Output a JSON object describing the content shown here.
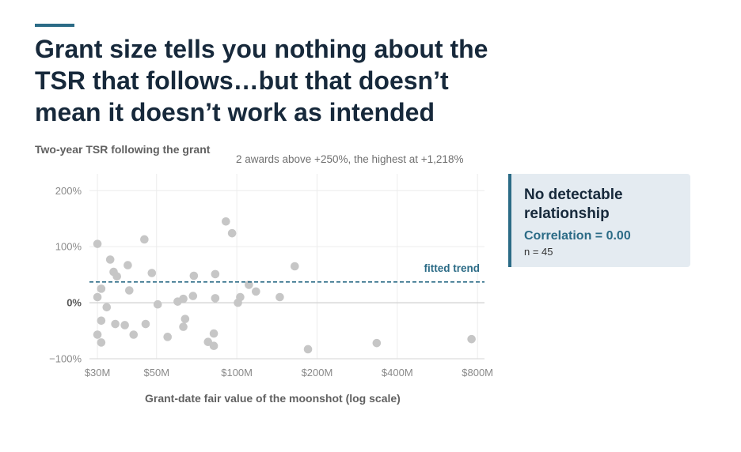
{
  "accent_color": "#2b6b86",
  "title": "Grant size tells you nothing about the TSR that follows…but that doesn’t mean it doesn’t work as intended",
  "chart_data": {
    "type": "scatter",
    "ylabel": "Two-year TSR following the grant",
    "xlabel": "Grant-date fair value of the moonshot (log scale)",
    "annotation": "2 awards above +250%, the highest at +1,218%",
    "x_scale": "log",
    "x_unit": "$M",
    "y_unit": "%",
    "xlim": [
      28,
      850
    ],
    "ylim": [
      -100,
      230
    ],
    "x_ticks": [
      30,
      50,
      100,
      200,
      400,
      800
    ],
    "x_tick_labels": [
      "$30M",
      "$50M",
      "$100M",
      "$200M",
      "$400M",
      "$800M"
    ],
    "y_ticks": [
      -100,
      0,
      100,
      200
    ],
    "y_tick_labels": [
      "−100%",
      "0%",
      "100%",
      "200%"
    ],
    "grid": true,
    "point_color": "#c6c6c6",
    "trend_color": "#2b6b86",
    "trend": {
      "label": "fitted trend",
      "y": 37
    },
    "points": [
      {
        "x": 30,
        "y": 105
      },
      {
        "x": 30,
        "y": 10
      },
      {
        "x": 30,
        "y": -57
      },
      {
        "x": 31,
        "y": 25
      },
      {
        "x": 31,
        "y": -32
      },
      {
        "x": 31,
        "y": -71
      },
      {
        "x": 32.5,
        "y": -8
      },
      {
        "x": 33.5,
        "y": 77
      },
      {
        "x": 34.5,
        "y": 55
      },
      {
        "x": 35,
        "y": -38
      },
      {
        "x": 35.5,
        "y": 47
      },
      {
        "x": 38,
        "y": -40
      },
      {
        "x": 39,
        "y": 67
      },
      {
        "x": 39.5,
        "y": 22
      },
      {
        "x": 41,
        "y": -57
      },
      {
        "x": 45,
        "y": 113
      },
      {
        "x": 45.5,
        "y": -38
      },
      {
        "x": 48,
        "y": 53
      },
      {
        "x": 50.5,
        "y": -3
      },
      {
        "x": 55,
        "y": -61
      },
      {
        "x": 60,
        "y": 2
      },
      {
        "x": 63,
        "y": 7
      },
      {
        "x": 63,
        "y": -43
      },
      {
        "x": 64,
        "y": -29
      },
      {
        "x": 68.5,
        "y": 12
      },
      {
        "x": 69,
        "y": 48
      },
      {
        "x": 78,
        "y": -70
      },
      {
        "x": 82,
        "y": -55
      },
      {
        "x": 82,
        "y": -77
      },
      {
        "x": 83,
        "y": 51
      },
      {
        "x": 83,
        "y": 8
      },
      {
        "x": 91,
        "y": 145
      },
      {
        "x": 96,
        "y": 124
      },
      {
        "x": 101,
        "y": 0
      },
      {
        "x": 103,
        "y": 10
      },
      {
        "x": 111,
        "y": 32
      },
      {
        "x": 118,
        "y": 20
      },
      {
        "x": 145,
        "y": 10
      },
      {
        "x": 165,
        "y": 65
      },
      {
        "x": 185,
        "y": -83
      },
      {
        "x": 335,
        "y": -72
      },
      {
        "x": 760,
        "y": -65
      }
    ]
  },
  "callout": {
    "title": "No detectable relationship",
    "correlation": "Correlation = 0.00",
    "n": "n = 45"
  }
}
